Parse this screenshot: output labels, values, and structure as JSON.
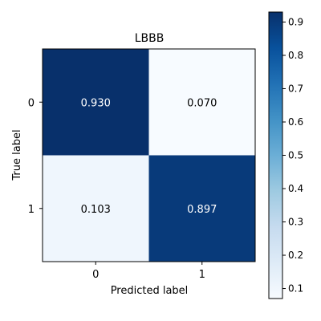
{
  "chart_data": {
    "type": "heatmap",
    "title": "LBBB",
    "xlabel": "Predicted label",
    "ylabel": "True label",
    "x_categories": [
      "0",
      "1"
    ],
    "y_categories": [
      "0",
      "1"
    ],
    "matrix": [
      [
        0.93,
        0.07
      ],
      [
        0.103,
        0.897
      ]
    ],
    "cell_labels": [
      [
        "0.930",
        "0.070"
      ],
      [
        "0.103",
        "0.897"
      ]
    ],
    "colormap": "Blues",
    "colorbar": {
      "range": [
        0.07,
        0.93
      ],
      "ticks": [
        0.1,
        0.2,
        0.3,
        0.4,
        0.5,
        0.6,
        0.7,
        0.8,
        0.9
      ],
      "tick_labels": [
        "0.1",
        "0.2",
        "0.3",
        "0.4",
        "0.5",
        "0.6",
        "0.7",
        "0.8",
        "0.9"
      ]
    },
    "colors": {
      "high": "#08306b",
      "low": "#f7fbff",
      "high_text": "#ffffff",
      "low_text": "#000000"
    }
  }
}
